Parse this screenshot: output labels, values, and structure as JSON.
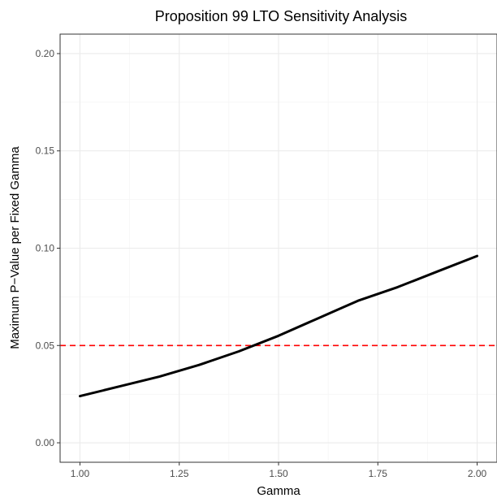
{
  "chart_data": {
    "type": "line",
    "title": "Proposition 99 LTO Sensitivity Analysis",
    "xlabel": "Gamma",
    "ylabel": "Maximum P−Value per Fixed Gamma",
    "xlim": [
      0.95,
      2.05
    ],
    "ylim": [
      -0.01,
      0.21
    ],
    "x_ticks": [
      1.0,
      1.25,
      1.5,
      1.75,
      2.0
    ],
    "x_tick_labels": [
      "1.00",
      "1.25",
      "1.50",
      "1.75",
      "2.00"
    ],
    "y_ticks": [
      0.0,
      0.05,
      0.1,
      0.15,
      0.2
    ],
    "y_tick_labels": [
      "0.00",
      "0.05",
      "0.10",
      "0.15",
      "0.20"
    ],
    "grid": true,
    "series": [
      {
        "color": "#000000",
        "x": [
          1.0,
          1.1,
          1.2,
          1.3,
          1.4,
          1.5,
          1.6,
          1.7,
          1.8,
          1.9,
          2.0
        ],
        "y": [
          0.024,
          0.029,
          0.034,
          0.04,
          0.047,
          0.055,
          0.064,
          0.073,
          0.08,
          0.088,
          0.096
        ]
      }
    ],
    "reference_line": {
      "y": 0.05,
      "color": "#ff0000",
      "style": "dashed"
    }
  }
}
